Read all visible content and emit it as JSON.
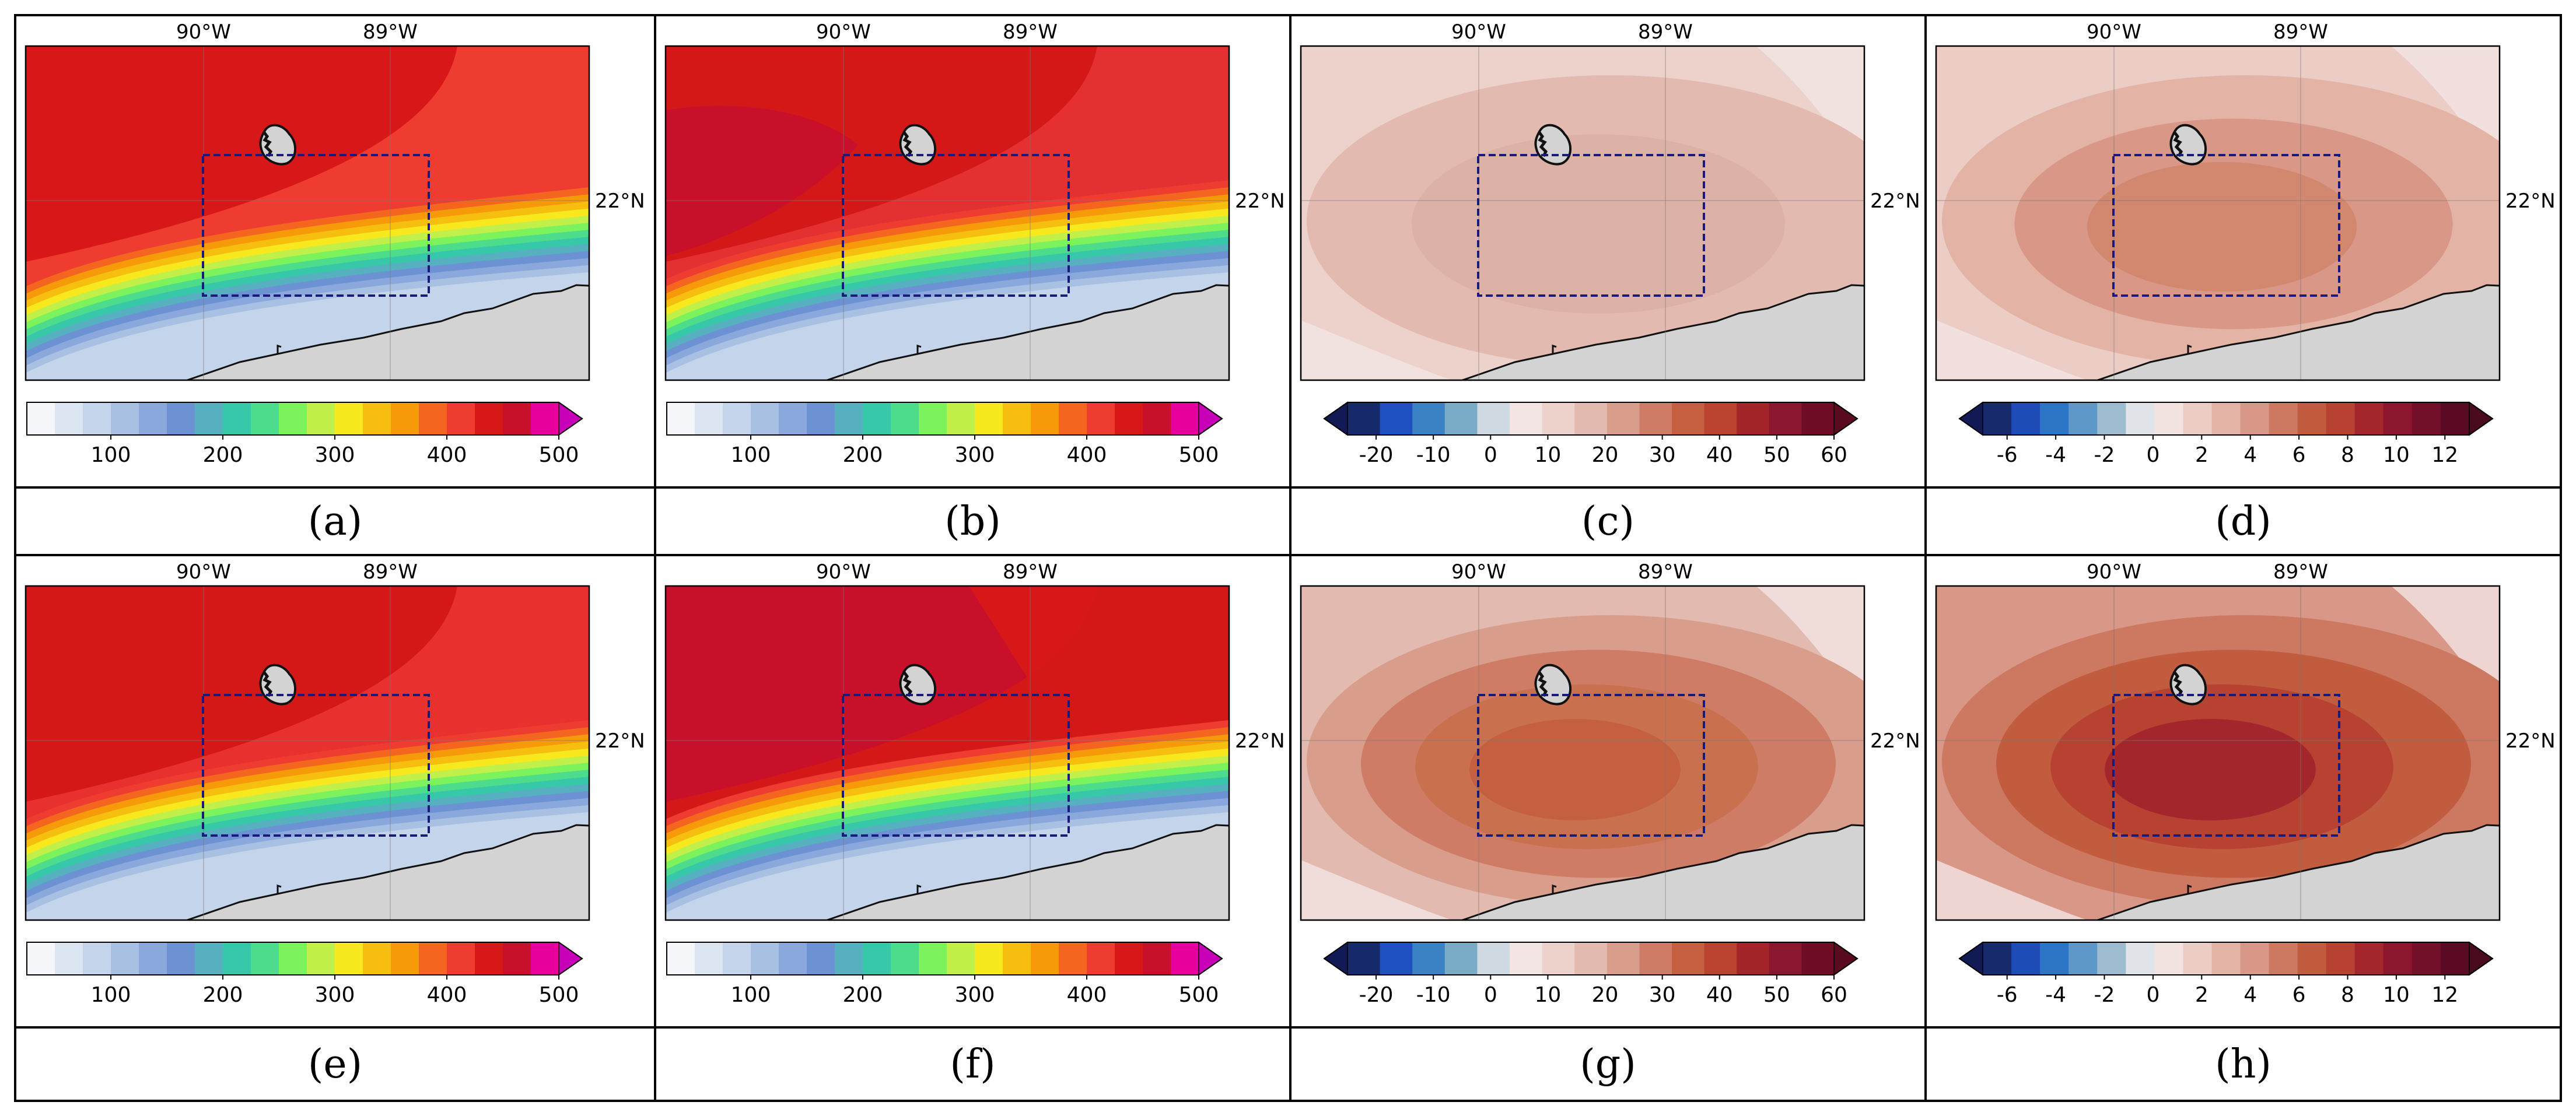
{
  "figure": {
    "rows": [
      {
        "panels": [
          {
            "label": "(a)",
            "cbar": "abs",
            "style": "a"
          },
          {
            "label": "(b)",
            "cbar": "abs",
            "style": "b"
          },
          {
            "label": "(c)",
            "cbar": "diffA",
            "style": "c"
          },
          {
            "label": "(d)",
            "cbar": "diffB",
            "style": "d"
          }
        ]
      },
      {
        "panels": [
          {
            "label": "(e)",
            "cbar": "abs",
            "style": "e"
          },
          {
            "label": "(f)",
            "cbar": "abs",
            "style": "f"
          },
          {
            "label": "(g)",
            "cbar": "diffA",
            "style": "g"
          },
          {
            "label": "(h)",
            "cbar": "diffB",
            "style": "h"
          }
        ]
      }
    ],
    "axes": {
      "lon_labels": [
        "90°W",
        "89°W"
      ],
      "lat_label": "22°N"
    },
    "colorbars": {
      "abs": {
        "ticks": [
          "100",
          "200",
          "300",
          "400",
          "500"
        ],
        "colors": [
          "#f4f6fa",
          "#dce6f2",
          "#c4d4ea",
          "#a8c0e2",
          "#8aa8dc",
          "#6c92d4",
          "#56b0c0",
          "#36c8a8",
          "#4cdc8c",
          "#7cf25c",
          "#c2f04a",
          "#f8e81e",
          "#f6be0e",
          "#f69a0a",
          "#f46620",
          "#ee3c30",
          "#d81818",
          "#c8102a",
          "#e8009c"
        ],
        "extend": "max",
        "arrow": "#c800b8"
      },
      "diffA": {
        "ticks": [
          "-20",
          "-10",
          "0",
          "10",
          "20",
          "30",
          "40",
          "50",
          "60"
        ],
        "colors": [
          "#16296a",
          "#1f50c0",
          "#3a82c4",
          "#79aac6",
          "#cfd9e1",
          "#f2e5e3",
          "#ecd2cb",
          "#e3baaf",
          "#d99d8c",
          "#ce7c66",
          "#c4603f",
          "#b9432e",
          "#a3252a",
          "#8b1630",
          "#6e0c26"
        ],
        "extend": "both",
        "arrowLeft": "#111a55",
        "arrowRight": "#5a0a1e"
      },
      "diffB": {
        "ticks": [
          "-6",
          "-4",
          "-2",
          "0",
          "2",
          "4",
          "6",
          "8",
          "10",
          "12"
        ],
        "colors": [
          "#172a6c",
          "#1f4db8",
          "#2c74c4",
          "#5e98c8",
          "#9dbcd0",
          "#e0e4e8",
          "#f2e3e0",
          "#ebcdc5",
          "#e3b3a6",
          "#d99787",
          "#cd7860",
          "#c25c3e",
          "#b74232",
          "#a3262c",
          "#8c162e",
          "#72102a",
          "#5a0a22"
        ],
        "extend": "both",
        "arrowLeft": "#111a55",
        "arrowRight": "#4a0a1e"
      }
    }
  }
}
